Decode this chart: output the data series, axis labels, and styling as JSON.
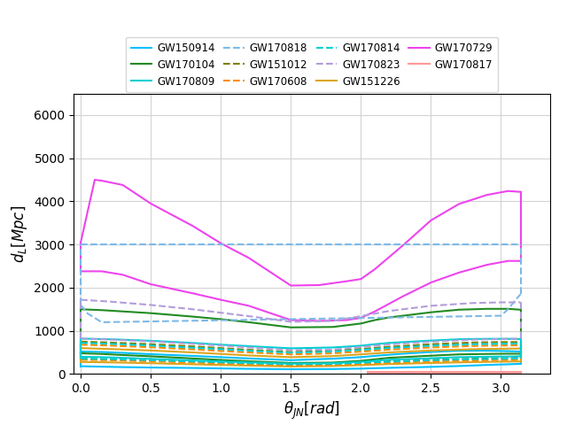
{
  "title": "",
  "xlabel": "$\\theta_{JN}[rad]$",
  "ylabel": "$d_L[Mpc]$",
  "xlim": [
    -0.05,
    3.35
  ],
  "ylim": [
    0,
    6500
  ],
  "yticks": [
    0,
    1000,
    2000,
    3000,
    4000,
    5000,
    6000
  ],
  "figsize": [
    6.4,
    4.8
  ],
  "dpi": 100,
  "events": {
    "GW150914": {
      "color": "#00BFFF",
      "linestyle": "solid",
      "theta": [
        0.0,
        0.15,
        0.3,
        0.5,
        0.8,
        1.0,
        1.2,
        1.5,
        1.8,
        2.0,
        2.1,
        2.3,
        2.5,
        2.7,
        2.9,
        3.05,
        3.14
      ],
      "upper": [
        520,
        510,
        490,
        460,
        420,
        390,
        360,
        320,
        355,
        390,
        420,
        470,
        510,
        540,
        540,
        530,
        520
      ],
      "lower": [
        180,
        170,
        160,
        150,
        140,
        130,
        120,
        110,
        115,
        125,
        135,
        150,
        165,
        185,
        210,
        225,
        235
      ]
    },
    "GW151012": {
      "color": "#808000",
      "linestyle": "dashed",
      "theta": [
        0.0,
        0.2,
        0.5,
        0.8,
        1.0,
        1.2,
        1.5,
        1.8,
        2.0,
        2.2,
        2.5,
        2.8,
        3.0,
        3.14
      ],
      "upper": [
        750,
        730,
        690,
        640,
        600,
        560,
        510,
        540,
        580,
        630,
        690,
        730,
        740,
        740
      ],
      "lower": [
        350,
        340,
        315,
        285,
        265,
        245,
        220,
        235,
        260,
        290,
        325,
        355,
        365,
        375
      ]
    },
    "GW151226": {
      "color": "#DAA520",
      "linestyle": "solid",
      "theta": [
        0.0,
        0.2,
        0.5,
        0.8,
        1.0,
        1.2,
        1.5,
        1.8,
        2.0,
        2.2,
        2.5,
        2.8,
        3.0,
        3.14
      ],
      "upper": [
        600,
        580,
        545,
        500,
        465,
        430,
        390,
        415,
        455,
        500,
        545,
        575,
        585,
        590
      ],
      "lower": [
        280,
        270,
        250,
        225,
        210,
        195,
        175,
        185,
        205,
        230,
        255,
        275,
        285,
        290
      ]
    },
    "GW170104": {
      "color": "#228B22",
      "linestyle": "solid",
      "theta": [
        0.0,
        0.15,
        0.3,
        0.5,
        0.8,
        1.0,
        1.2,
        1.5,
        1.8,
        2.0,
        2.1,
        2.2,
        2.5,
        2.7,
        2.9,
        3.05,
        3.14
      ],
      "upper": [
        1500,
        1480,
        1450,
        1410,
        1330,
        1270,
        1200,
        1080,
        1090,
        1170,
        1250,
        1310,
        1430,
        1490,
        1510,
        1510,
        1490
      ],
      "lower": [
        480,
        465,
        440,
        410,
        360,
        325,
        295,
        255,
        265,
        305,
        340,
        375,
        425,
        455,
        465,
        470,
        470
      ]
    },
    "GW170608": {
      "color": "#FF8C00",
      "linestyle": "dashed",
      "theta": [
        0.0,
        0.2,
        0.5,
        0.8,
        1.0,
        1.2,
        1.5,
        1.8,
        2.0,
        2.2,
        2.5,
        2.8,
        3.0,
        3.14
      ],
      "upper": [
        680,
        660,
        620,
        570,
        535,
        500,
        455,
        480,
        520,
        565,
        615,
        650,
        660,
        665
      ],
      "lower": [
        330,
        320,
        295,
        265,
        245,
        225,
        200,
        210,
        235,
        260,
        290,
        315,
        325,
        330
      ]
    },
    "GW170729": {
      "color": "#EE44EE",
      "linestyle": "solid",
      "theta": [
        0.0,
        0.1,
        0.15,
        0.3,
        0.5,
        0.8,
        1.0,
        1.2,
        1.5,
        1.7,
        1.9,
        2.0,
        2.1,
        2.3,
        2.5,
        2.7,
        2.9,
        3.05,
        3.1,
        3.14
      ],
      "upper": [
        3050,
        4500,
        4480,
        4380,
        3950,
        3430,
        3030,
        2690,
        2050,
        2060,
        2150,
        2200,
        2430,
        2980,
        3560,
        3940,
        4150,
        4240,
        4230,
        4220
      ],
      "lower": [
        2380,
        2380,
        2380,
        2300,
        2080,
        1870,
        1720,
        1580,
        1250,
        1230,
        1250,
        1300,
        1450,
        1800,
        2120,
        2350,
        2530,
        2620,
        2620,
        2620
      ]
    },
    "GW170809": {
      "color": "#00CED1",
      "linestyle": "solid",
      "theta": [
        0.0,
        0.15,
        0.3,
        0.5,
        0.8,
        1.0,
        1.2,
        1.5,
        1.8,
        2.0,
        2.1,
        2.2,
        2.5,
        2.7,
        2.9,
        3.05,
        3.14
      ],
      "upper": [
        820,
        810,
        795,
        770,
        720,
        680,
        645,
        595,
        615,
        655,
        690,
        720,
        775,
        805,
        815,
        815,
        810
      ],
      "lower": [
        400,
        390,
        375,
        350,
        315,
        290,
        270,
        240,
        250,
        280,
        305,
        330,
        365,
        390,
        400,
        405,
        410
      ]
    },
    "GW170814": {
      "color": "#00CED1",
      "linestyle": "dashed",
      "theta": [
        0.0,
        0.2,
        0.5,
        0.8,
        1.0,
        1.2,
        1.5,
        1.8,
        2.0,
        2.2,
        2.5,
        2.8,
        3.0,
        3.14
      ],
      "upper": [
        720,
        700,
        660,
        610,
        575,
        540,
        495,
        520,
        560,
        605,
        655,
        690,
        700,
        705
      ],
      "lower": [
        355,
        345,
        320,
        290,
        270,
        250,
        225,
        235,
        260,
        285,
        320,
        345,
        355,
        360
      ]
    },
    "GW170817": {
      "color": "#FF9999",
      "linestyle": "solid",
      "theta": [
        2.05,
        2.1,
        2.2,
        2.5,
        2.7,
        2.9,
        3.0,
        3.1,
        3.14
      ],
      "upper": [
        55,
        55,
        55,
        55,
        55,
        55,
        55,
        55,
        55
      ],
      "lower": [
        20,
        20,
        20,
        20,
        20,
        20,
        20,
        20,
        20
      ]
    },
    "GW170818": {
      "color": "#7CB9E8",
      "linestyle": "dashed",
      "theta": [
        0.0,
        0.05,
        0.1,
        0.15,
        3.0,
        3.05,
        3.1,
        3.14
      ],
      "upper": [
        3000,
        3000,
        3000,
        3000,
        3000,
        3000,
        3000,
        3000
      ],
      "lower": [
        1600,
        1400,
        1300,
        1200,
        1350,
        1500,
        1700,
        1850
      ]
    },
    "GW170823": {
      "color": "#B39DDB",
      "linestyle": "dashed",
      "theta": [
        0.0,
        0.2,
        0.5,
        0.8,
        1.0,
        1.2,
        1.5,
        1.8,
        2.0,
        2.2,
        2.5,
        2.8,
        3.0,
        3.14
      ],
      "upper": [
        1720,
        1680,
        1600,
        1500,
        1420,
        1340,
        1210,
        1230,
        1340,
        1460,
        1580,
        1645,
        1660,
        1660
      ],
      "lower": [
        820,
        800,
        755,
        700,
        660,
        615,
        555,
        565,
        625,
        685,
        750,
        795,
        810,
        820
      ]
    }
  },
  "legend_order": [
    "GW150914",
    "GW170104",
    "GW170809",
    "GW170818",
    "GW151012",
    "GW170608",
    "GW170814",
    "GW170823",
    "GW151226",
    "GW170729",
    "GW170817"
  ]
}
